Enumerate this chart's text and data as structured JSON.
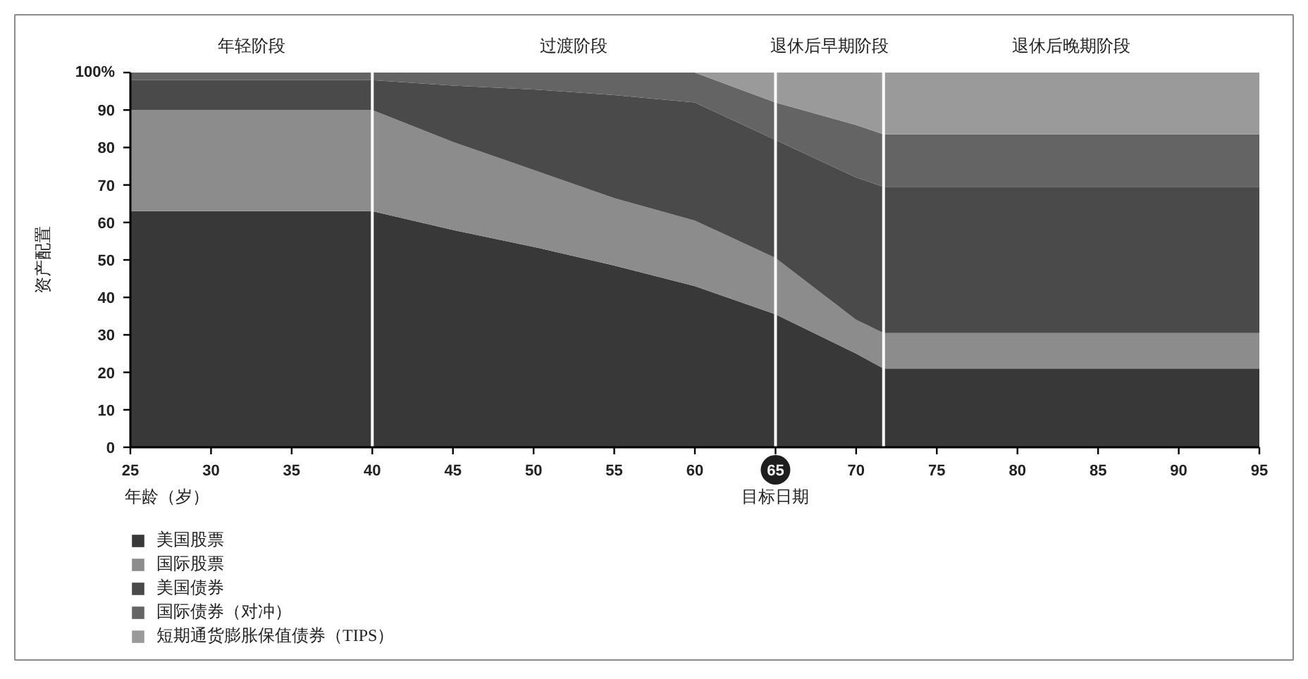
{
  "chart_data": {
    "type": "area",
    "stacked": true,
    "xlabel": "年龄（岁）",
    "ylabel": "资产配置",
    "x": [
      25,
      40,
      45,
      50,
      55,
      60,
      65,
      70,
      71.7,
      95
    ],
    "series": [
      {
        "name": "美国股票",
        "color": "#383838",
        "values": [
          63,
          63,
          58,
          53.5,
          48.5,
          43,
          35.5,
          25,
          21,
          21
        ]
      },
      {
        "name": "国际股票",
        "color": "#8c8c8c",
        "values": [
          27,
          27,
          23.5,
          20.5,
          18,
          17.5,
          15,
          9,
          9.5,
          9.5
        ]
      },
      {
        "name": "美国债券",
        "color": "#4a4a4a",
        "values": [
          8,
          8,
          15,
          21.5,
          27.5,
          31.5,
          31.5,
          38,
          39,
          39
        ]
      },
      {
        "name": "国际债券（对冲）",
        "color": "#646464",
        "values": [
          2,
          2,
          3.5,
          4.5,
          6,
          8,
          10,
          14,
          14,
          14
        ]
      },
      {
        "name": "短期通货膨胀保值债券（TIPS）",
        "color": "#9a9a9a",
        "values": [
          0,
          0,
          0,
          0,
          0,
          0,
          8,
          14,
          16.5,
          16.5
        ]
      }
    ],
    "xlim": [
      25,
      95
    ],
    "ylim": [
      0,
      100
    ],
    "xticks": [
      25,
      30,
      35,
      40,
      45,
      50,
      55,
      60,
      65,
      70,
      75,
      80,
      85,
      90,
      95
    ],
    "yticks": [
      0,
      10,
      20,
      30,
      40,
      50,
      60,
      70,
      80,
      90,
      {
        "value": 100,
        "label": "100%"
      }
    ],
    "ref_lines": [
      {
        "axis": "x",
        "value": 40,
        "color": "#ffffff"
      },
      {
        "axis": "x",
        "value": 65,
        "label": "目标日期",
        "color": "#ffffff"
      },
      {
        "axis": "x",
        "value": 71.7,
        "color": "#ffffff"
      }
    ],
    "annotations": [
      "年轻阶段",
      "过渡阶段",
      "退休后早期阶段",
      "退休后晚期阶段"
    ],
    "legend": "bottom"
  }
}
